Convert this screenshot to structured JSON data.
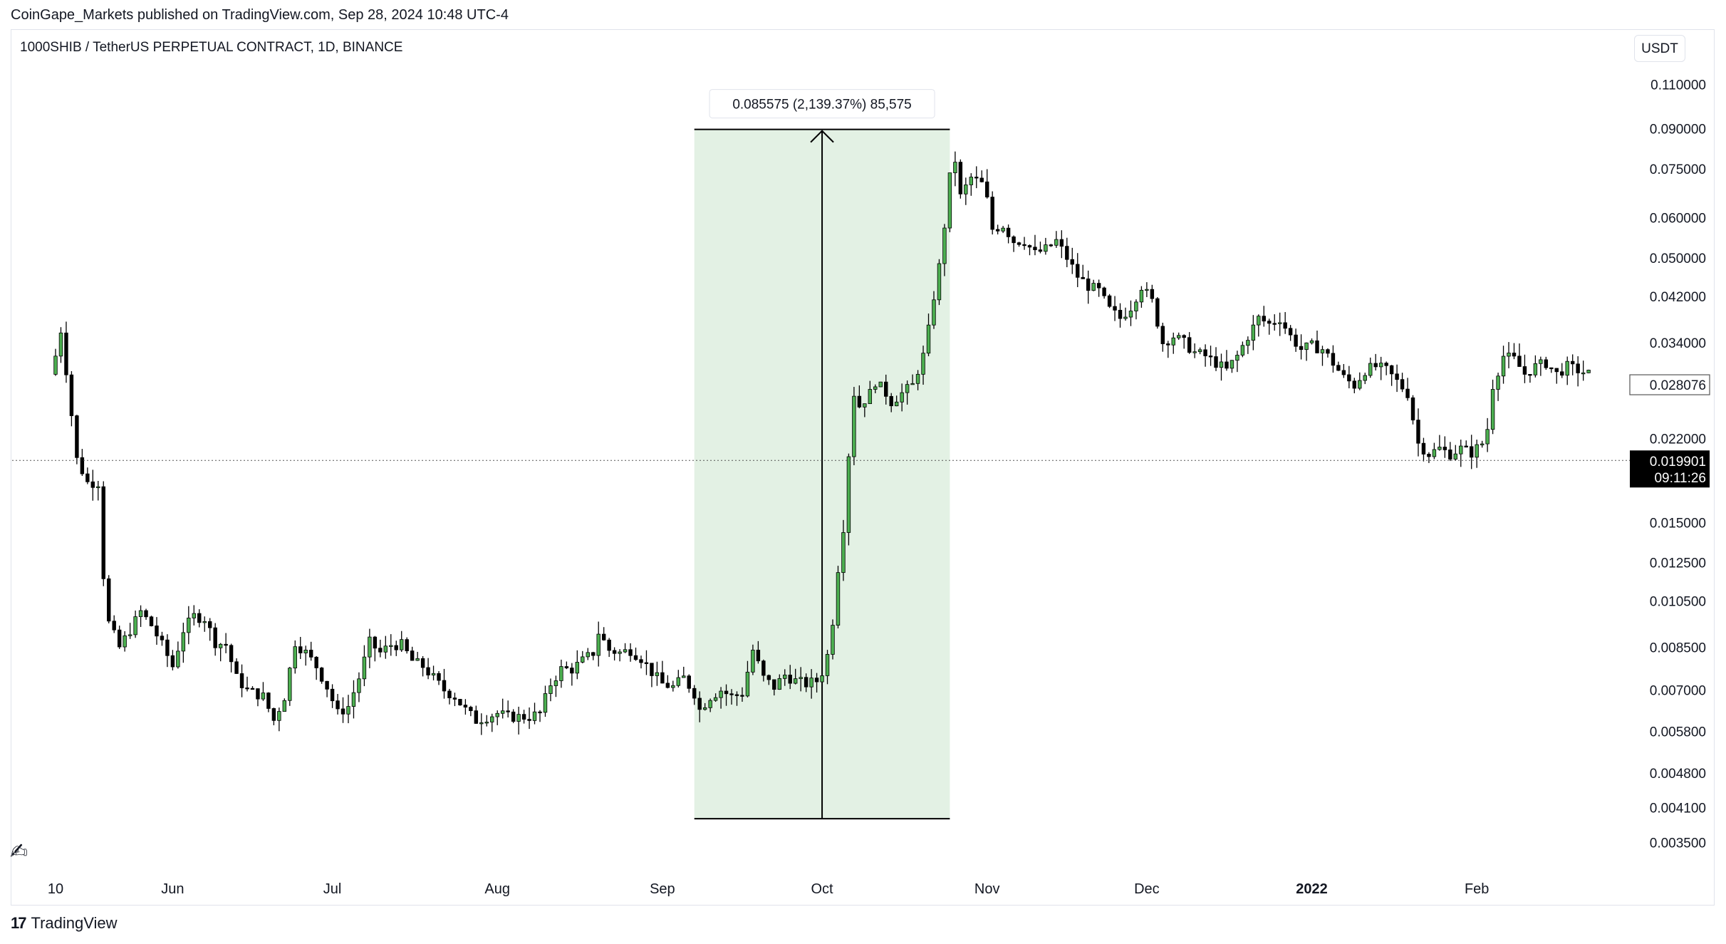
{
  "publisher": "CoinGape_Markets published on TradingView.com, Sep 28, 2024 10:48 UTC-4",
  "symbol": "1000SHIB / TetherUS PERPETUAL CONTRACT, 1D, BINANCE",
  "currency_button": "USDT",
  "brand": "TradingView",
  "brand_logo": "17",
  "drawing_tool_icon": "pencil-hand-icon",
  "colors": {
    "up": "#4caf50",
    "down": "#000000",
    "range_fill": "#e3f1e4",
    "last_price_bg": "#000000"
  },
  "chart_data": {
    "type": "candlestick",
    "title": "1000SHIB / TetherUS PERPETUAL CONTRACT, 1D, BINANCE",
    "y_scale": "log",
    "ylim": [
      0.0031,
      0.118
    ],
    "y_ticks": [
      "0.003500",
      "0.004100",
      "0.004800",
      "0.005800",
      "0.007000",
      "0.008500",
      "0.010500",
      "0.012500",
      "0.015000",
      "0.022000",
      "0.028076",
      "0.034000",
      "0.042000",
      "0.050000",
      "0.060000",
      "0.075000",
      "0.090000",
      "0.110000"
    ],
    "x_ticks": [
      "10",
      "Jun",
      "Jul",
      "Aug",
      "Sep",
      "Oct",
      "Nov",
      "Dec",
      "2022",
      "Feb"
    ],
    "x_tick_dates": [
      "2021-05-10",
      "2021-06-01",
      "2021-07-01",
      "2021-08-01",
      "2021-09-01",
      "2021-10-01",
      "2021-11-01",
      "2021-12-01",
      "2022-01-01",
      "2022-02-01"
    ],
    "date_range": [
      "2021-05-10",
      "2022-02-26"
    ],
    "last_price": {
      "value": "0.019901",
      "countdown": "09:11:26"
    },
    "previous_close_label": "0.028076",
    "price_range_measure": {
      "label": "0.085575 (2,139.37%) 85,575",
      "from_date": "2021-09-07",
      "to_date": "2021-10-25",
      "from_price": 0.0039,
      "to_price": 0.0897
    },
    "close_path": [
      [
        "2021-05-10",
        0.032
      ],
      [
        "2021-05-11",
        0.036
      ],
      [
        "2021-05-12",
        0.03
      ],
      [
        "2021-05-14",
        0.02
      ],
      [
        "2021-05-16",
        0.018
      ],
      [
        "2021-05-18",
        0.018
      ],
      [
        "2021-05-19",
        0.0118
      ],
      [
        "2021-05-20",
        0.0095
      ],
      [
        "2021-05-22",
        0.0085
      ],
      [
        "2021-05-24",
        0.0092
      ],
      [
        "2021-05-26",
        0.01
      ],
      [
        "2021-05-28",
        0.0094
      ],
      [
        "2021-05-30",
        0.0086
      ],
      [
        "2021-06-01",
        0.0078
      ],
      [
        "2021-06-03",
        0.0092
      ],
      [
        "2021-06-05",
        0.0098
      ],
      [
        "2021-06-07",
        0.0097
      ],
      [
        "2021-06-09",
        0.0087
      ],
      [
        "2021-06-11",
        0.0086
      ],
      [
        "2021-06-13",
        0.0074
      ],
      [
        "2021-06-15",
        0.007
      ],
      [
        "2021-06-18",
        0.0068
      ],
      [
        "2021-06-20",
        0.0061
      ],
      [
        "2021-06-22",
        0.0068
      ],
      [
        "2021-06-24",
        0.0087
      ],
      [
        "2021-06-26",
        0.0083
      ],
      [
        "2021-06-28",
        0.0078
      ],
      [
        "2021-06-30",
        0.0071
      ],
      [
        "2021-07-02",
        0.0063
      ],
      [
        "2021-07-04",
        0.0065
      ],
      [
        "2021-07-06",
        0.0074
      ],
      [
        "2021-07-08",
        0.0087
      ],
      [
        "2021-07-10",
        0.0083
      ],
      [
        "2021-07-12",
        0.0086
      ],
      [
        "2021-07-14",
        0.0086
      ],
      [
        "2021-07-16",
        0.008
      ],
      [
        "2021-07-18",
        0.0078
      ],
      [
        "2021-07-20",
        0.0074
      ],
      [
        "2021-07-22",
        0.007
      ],
      [
        "2021-07-24",
        0.0068
      ],
      [
        "2021-07-26",
        0.0064
      ],
      [
        "2021-07-28",
        0.0061
      ],
      [
        "2021-07-30",
        0.0062
      ],
      [
        "2021-08-01",
        0.0063
      ],
      [
        "2021-08-03",
        0.0062
      ],
      [
        "2021-08-05",
        0.0062
      ],
      [
        "2021-08-07",
        0.0062
      ],
      [
        "2021-08-09",
        0.0063
      ],
      [
        "2021-08-11",
        0.0072
      ],
      [
        "2021-08-13",
        0.0077
      ],
      [
        "2021-08-15",
        0.0077
      ],
      [
        "2021-08-17",
        0.008
      ],
      [
        "2021-08-19",
        0.0083
      ],
      [
        "2021-08-20",
        0.0091
      ],
      [
        "2021-08-22",
        0.0084
      ],
      [
        "2021-08-24",
        0.0083
      ],
      [
        "2021-08-26",
        0.0084
      ],
      [
        "2021-08-28",
        0.0081
      ],
      [
        "2021-08-30",
        0.0076
      ],
      [
        "2021-09-01",
        0.0072
      ],
      [
        "2021-09-03",
        0.0071
      ],
      [
        "2021-09-05",
        0.0074
      ],
      [
        "2021-09-07",
        0.0069
      ],
      [
        "2021-09-08",
        0.0064
      ],
      [
        "2021-09-10",
        0.0068
      ],
      [
        "2021-09-12",
        0.007
      ],
      [
        "2021-09-14",
        0.0068
      ],
      [
        "2021-09-16",
        0.0069
      ],
      [
        "2021-09-18",
        0.0084
      ],
      [
        "2021-09-20",
        0.0074
      ],
      [
        "2021-09-22",
        0.0071
      ],
      [
        "2021-09-24",
        0.0075
      ],
      [
        "2021-09-26",
        0.0073
      ],
      [
        "2021-09-28",
        0.0072
      ],
      [
        "2021-09-30",
        0.0073
      ],
      [
        "2021-10-01",
        0.0076
      ],
      [
        "2021-10-02",
        0.0082
      ],
      [
        "2021-10-03",
        0.0096
      ],
      [
        "2021-10-04",
        0.0122
      ],
      [
        "2021-10-05",
        0.0147
      ],
      [
        "2021-10-06",
        0.0205
      ],
      [
        "2021-10-07",
        0.027
      ],
      [
        "2021-10-08",
        0.0255
      ],
      [
        "2021-10-10",
        0.027
      ],
      [
        "2021-10-11",
        0.0285
      ],
      [
        "2021-10-13",
        0.027
      ],
      [
        "2021-10-14",
        0.026
      ],
      [
        "2021-10-16",
        0.027
      ],
      [
        "2021-10-18",
        0.028
      ],
      [
        "2021-10-19",
        0.03
      ],
      [
        "2021-10-20",
        0.032
      ],
      [
        "2021-10-21",
        0.036
      ],
      [
        "2021-10-22",
        0.042
      ],
      [
        "2021-10-23",
        0.048
      ],
      [
        "2021-10-24",
        0.058
      ],
      [
        "2021-10-25",
        0.072
      ],
      [
        "2021-10-26",
        0.078
      ],
      [
        "2021-10-27",
        0.066
      ],
      [
        "2021-10-28",
        0.069
      ],
      [
        "2021-10-29",
        0.072
      ],
      [
        "2021-10-31",
        0.07
      ],
      [
        "2021-11-01",
        0.065
      ],
      [
        "2021-11-02",
        0.057
      ],
      [
        "2021-11-04",
        0.058
      ],
      [
        "2021-11-06",
        0.054
      ],
      [
        "2021-11-08",
        0.054
      ],
      [
        "2021-11-10",
        0.051
      ],
      [
        "2021-11-12",
        0.052
      ],
      [
        "2021-11-14",
        0.054
      ],
      [
        "2021-11-16",
        0.05
      ],
      [
        "2021-11-18",
        0.046
      ],
      [
        "2021-11-20",
        0.044
      ],
      [
        "2021-11-22",
        0.043
      ],
      [
        "2021-11-24",
        0.0395
      ],
      [
        "2021-11-26",
        0.038
      ],
      [
        "2021-11-28",
        0.04
      ],
      [
        "2021-11-30",
        0.044
      ],
      [
        "2021-12-02",
        0.041
      ],
      [
        "2021-12-04",
        0.034
      ],
      [
        "2021-12-06",
        0.035
      ],
      [
        "2021-12-08",
        0.034
      ],
      [
        "2021-12-10",
        0.0325
      ],
      [
        "2021-12-12",
        0.032
      ],
      [
        "2021-12-14",
        0.031
      ],
      [
        "2021-12-16",
        0.03
      ],
      [
        "2021-12-18",
        0.032
      ],
      [
        "2021-12-20",
        0.035
      ],
      [
        "2021-12-22",
        0.038
      ],
      [
        "2021-12-24",
        0.037
      ],
      [
        "2021-12-26",
        0.038
      ],
      [
        "2021-12-28",
        0.035
      ],
      [
        "2021-12-30",
        0.033
      ],
      [
        "2022-01-01",
        0.0335
      ],
      [
        "2022-01-03",
        0.033
      ],
      [
        "2022-01-05",
        0.031
      ],
      [
        "2022-01-07",
        0.029
      ],
      [
        "2022-01-09",
        0.028
      ],
      [
        "2022-01-11",
        0.03
      ],
      [
        "2022-01-13",
        0.0305
      ],
      [
        "2022-01-15",
        0.03
      ],
      [
        "2022-01-17",
        0.0285
      ],
      [
        "2022-01-19",
        0.027
      ],
      [
        "2022-01-21",
        0.0215
      ],
      [
        "2022-01-23",
        0.0205
      ],
      [
        "2022-01-25",
        0.021
      ],
      [
        "2022-01-27",
        0.0205
      ],
      [
        "2022-01-29",
        0.021
      ],
      [
        "2022-01-31",
        0.0206
      ],
      [
        "2022-02-02",
        0.0215
      ],
      [
        "2022-02-03",
        0.023
      ],
      [
        "2022-02-04",
        0.028
      ],
      [
        "2022-02-06",
        0.032
      ],
      [
        "2022-02-08",
        0.0315
      ],
      [
        "2022-02-10",
        0.0295
      ],
      [
        "2022-02-12",
        0.0305
      ],
      [
        "2022-02-14",
        0.031
      ],
      [
        "2022-02-16",
        0.0295
      ],
      [
        "2022-02-18",
        0.0305
      ],
      [
        "2022-02-20",
        0.03
      ],
      [
        "2022-02-22",
        0.0295
      ]
    ]
  }
}
